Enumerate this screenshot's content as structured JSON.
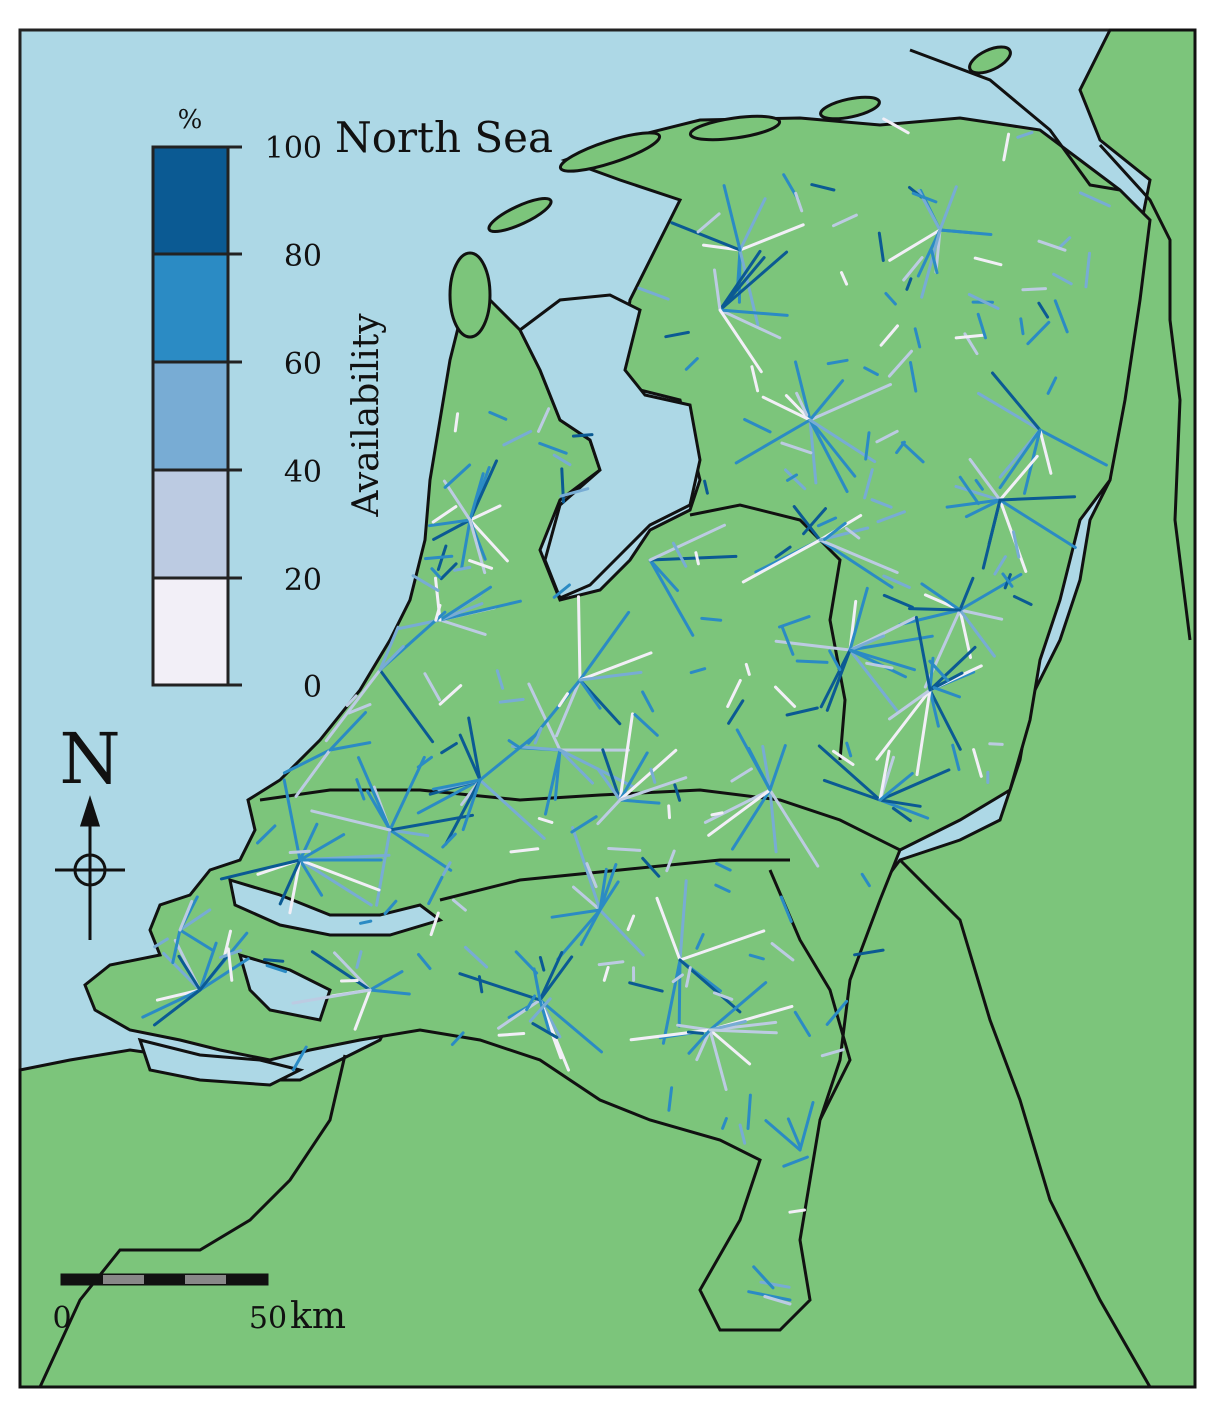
{
  "sea_label": "North Sea",
  "legend": {
    "unit": "%",
    "title": "Availability",
    "ticks": [
      "100",
      "80",
      "60",
      "40",
      "20",
      "0"
    ],
    "classes": [
      {
        "range": "80-100",
        "color": "#0b5a93"
      },
      {
        "range": "60-80",
        "color": "#2b8bc4"
      },
      {
        "range": "40-60",
        "color": "#78acd4"
      },
      {
        "range": "20-40",
        "color": "#bccbe2"
      },
      {
        "range": "0-20",
        "color": "#f2eff7"
      }
    ]
  },
  "compass": {
    "letter": "N"
  },
  "scalebar": {
    "start": "0",
    "end": "50",
    "unit": "km"
  },
  "colors": {
    "sea": "#add8e6",
    "land": "#7cc57b",
    "border": "#111111"
  },
  "icons": [
    "north-arrow-icon"
  ]
}
